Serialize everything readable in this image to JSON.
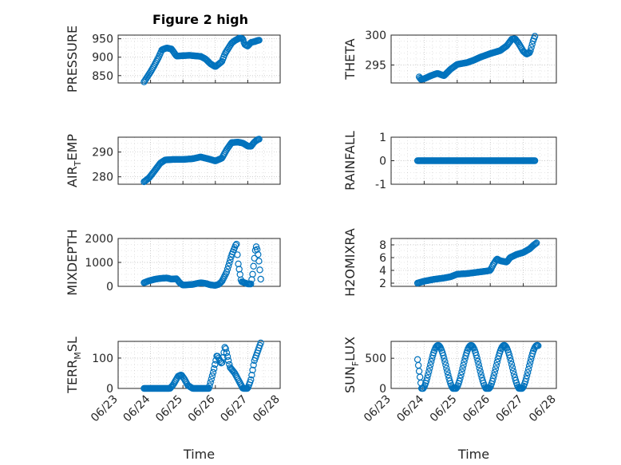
{
  "figure_title": "Figure 2 high",
  "colors": {
    "series": "#0072BD",
    "axes": "#262626",
    "background": "#ffffff"
  },
  "chart_data": [
    {
      "type": "scatter",
      "title": "Figure 2 high",
      "ylabel": "PRESSURE",
      "xlabel": "",
      "ylim": [
        830,
        960
      ],
      "yticks": [
        850,
        900,
        950
      ],
      "ytick_labels": [
        "850",
        "900",
        "950"
      ],
      "xlim": [
        0,
        5
      ],
      "xtick_labels": [],
      "grid": true,
      "anchors": [
        [
          0.8,
          833
        ],
        [
          1.0,
          860
        ],
        [
          1.1,
          875
        ],
        [
          1.25,
          900
        ],
        [
          1.35,
          920
        ],
        [
          1.5,
          925
        ],
        [
          1.65,
          922
        ],
        [
          1.8,
          903
        ],
        [
          2.2,
          905
        ],
        [
          2.55,
          902
        ],
        [
          2.7,
          895
        ],
        [
          2.85,
          882
        ],
        [
          3.0,
          874
        ],
        [
          3.2,
          888
        ],
        [
          3.3,
          910
        ],
        [
          3.5,
          938
        ],
        [
          3.6,
          945
        ],
        [
          3.75,
          952
        ],
        [
          3.85,
          950
        ],
        [
          3.9,
          935
        ],
        [
          4.0,
          930
        ],
        [
          4.1,
          940
        ],
        [
          4.2,
          942
        ],
        [
          4.3,
          945
        ],
        [
          4.35,
          946
        ]
      ]
    },
    {
      "type": "scatter",
      "ylabel": "THETA",
      "xlabel": "",
      "ylim": [
        292,
        300
      ],
      "yticks": [
        295,
        300
      ],
      "ytick_labels": [
        "295",
        "300"
      ],
      "xlim": [
        0,
        5
      ],
      "xtick_labels": [],
      "grid": true,
      "anchors": [
        [
          0.85,
          293.0
        ],
        [
          0.9,
          292.6
        ],
        [
          1.0,
          292.7
        ],
        [
          1.2,
          293.2
        ],
        [
          1.4,
          293.6
        ],
        [
          1.6,
          293.2
        ],
        [
          1.8,
          294.3
        ],
        [
          2.0,
          295.1
        ],
        [
          2.3,
          295.4
        ],
        [
          2.5,
          295.8
        ],
        [
          2.7,
          296.3
        ],
        [
          3.0,
          296.9
        ],
        [
          3.3,
          297.4
        ],
        [
          3.5,
          298.2
        ],
        [
          3.65,
          299.3
        ],
        [
          3.75,
          299.4
        ],
        [
          3.85,
          298.7
        ],
        [
          4.0,
          297.3
        ],
        [
          4.1,
          296.8
        ],
        [
          4.2,
          297.1
        ],
        [
          4.3,
          299.1
        ],
        [
          4.35,
          299.8
        ]
      ]
    },
    {
      "type": "scatter",
      "ylabel_main": "AIR",
      "ylabel_sub": "T",
      "ylabel_rest": "EMP",
      "xlabel": "",
      "ylim": [
        277,
        296
      ],
      "yticks": [
        280,
        290
      ],
      "ytick_labels": [
        "280",
        "290"
      ],
      "xlim": [
        0,
        5
      ],
      "xtick_labels": [],
      "grid": true,
      "anchors": [
        [
          0.8,
          278.0
        ],
        [
          0.95,
          279.5
        ],
        [
          1.1,
          282.0
        ],
        [
          1.3,
          285.5
        ],
        [
          1.45,
          286.8
        ],
        [
          1.7,
          287.0
        ],
        [
          2.0,
          287.0
        ],
        [
          2.3,
          287.3
        ],
        [
          2.55,
          288.0
        ],
        [
          2.7,
          287.5
        ],
        [
          2.85,
          287.0
        ],
        [
          3.0,
          286.4
        ],
        [
          3.2,
          287.5
        ],
        [
          3.35,
          291.0
        ],
        [
          3.5,
          293.8
        ],
        [
          3.7,
          294.0
        ],
        [
          3.85,
          293.6
        ],
        [
          4.0,
          292.4
        ],
        [
          4.1,
          292.3
        ],
        [
          4.2,
          294.0
        ],
        [
          4.3,
          295.0
        ],
        [
          4.35,
          295.2
        ]
      ]
    },
    {
      "type": "scatter",
      "ylabel": "RAINFALL",
      "xlabel": "",
      "ylim": [
        -1,
        1
      ],
      "yticks": [
        -1,
        0,
        1
      ],
      "ytick_labels": [
        "-1",
        "0",
        "1"
      ],
      "xlim": [
        0,
        5
      ],
      "xtick_labels": [],
      "grid": true,
      "anchors": [
        [
          0.8,
          0
        ],
        [
          4.35,
          0
        ]
      ]
    },
    {
      "type": "scatter",
      "ylabel": "MIXDEPTH",
      "xlabel": "",
      "ylim": [
        0,
        2000
      ],
      "yticks": [
        0,
        1000,
        2000
      ],
      "ytick_labels": [
        "0",
        "1000",
        "2000"
      ],
      "xlim": [
        0,
        5
      ],
      "xtick_labels": [],
      "grid": true,
      "anchors": [
        [
          0.8,
          150
        ],
        [
          0.95,
          230
        ],
        [
          1.15,
          300
        ],
        [
          1.3,
          330
        ],
        [
          1.5,
          350
        ],
        [
          1.65,
          300
        ],
        [
          1.8,
          320
        ],
        [
          1.9,
          150
        ],
        [
          2.0,
          50
        ],
        [
          2.3,
          80
        ],
        [
          2.55,
          150
        ],
        [
          2.7,
          120
        ],
        [
          2.85,
          60
        ],
        [
          3.0,
          40
        ],
        [
          3.1,
          80
        ],
        [
          3.2,
          200
        ],
        [
          3.35,
          600
        ],
        [
          3.5,
          1300
        ],
        [
          3.65,
          1800
        ],
        [
          3.7,
          1000
        ],
        [
          3.8,
          200
        ],
        [
          3.9,
          150
        ],
        [
          4.0,
          100
        ],
        [
          4.1,
          100
        ],
        [
          4.15,
          500
        ],
        [
          4.25,
          1700
        ],
        [
          4.3,
          1500
        ],
        [
          4.35,
          1000
        ],
        [
          4.4,
          300
        ]
      ]
    },
    {
      "type": "scatter",
      "ylabel": "H2OMIXRA",
      "xlabel": "",
      "ylim": [
        1.5,
        9
      ],
      "yticks": [
        2,
        4,
        6,
        8
      ],
      "ytick_labels": [
        "2",
        "4",
        "6",
        "8"
      ],
      "xlim": [
        0,
        5
      ],
      "xtick_labels": [],
      "grid": true,
      "anchors": [
        [
          0.8,
          2.0
        ],
        [
          1.0,
          2.3
        ],
        [
          1.3,
          2.6
        ],
        [
          1.6,
          2.8
        ],
        [
          1.8,
          3.0
        ],
        [
          2.0,
          3.4
        ],
        [
          2.3,
          3.5
        ],
        [
          2.6,
          3.7
        ],
        [
          2.9,
          3.9
        ],
        [
          3.0,
          4.0
        ],
        [
          3.1,
          5.0
        ],
        [
          3.2,
          5.8
        ],
        [
          3.3,
          5.5
        ],
        [
          3.5,
          5.3
        ],
        [
          3.6,
          6.0
        ],
        [
          3.8,
          6.5
        ],
        [
          4.0,
          6.8
        ],
        [
          4.2,
          7.4
        ],
        [
          4.3,
          7.9
        ],
        [
          4.4,
          8.3
        ]
      ]
    },
    {
      "type": "scatter",
      "ylabel_main": "TERR",
      "ylabel_sub": "M",
      "ylabel_rest": "SL",
      "xlabel": "Time",
      "ylim": [
        0,
        155
      ],
      "yticks": [
        0,
        100
      ],
      "ytick_labels": [
        "0",
        "100"
      ],
      "xlim": [
        0,
        5
      ],
      "xtick_labels": [
        "06/23",
        "06/24",
        "06/25",
        "06/26",
        "06/27",
        "06/28"
      ],
      "grid": true,
      "anchors": [
        [
          0.8,
          0
        ],
        [
          1.3,
          0
        ],
        [
          1.6,
          0
        ],
        [
          1.7,
          12
        ],
        [
          1.85,
          40
        ],
        [
          1.95,
          45
        ],
        [
          2.05,
          30
        ],
        [
          2.15,
          10
        ],
        [
          2.3,
          0
        ],
        [
          2.8,
          0
        ],
        [
          2.95,
          60
        ],
        [
          3.05,
          110
        ],
        [
          3.2,
          80
        ],
        [
          3.3,
          140
        ],
        [
          3.45,
          70
        ],
        [
          3.6,
          50
        ],
        [
          3.75,
          20
        ],
        [
          3.85,
          0
        ],
        [
          4.0,
          0
        ],
        [
          4.1,
          30
        ],
        [
          4.2,
          90
        ],
        [
          4.3,
          120
        ],
        [
          4.4,
          150
        ]
      ]
    },
    {
      "type": "scatter",
      "ylabel_main": "SUN",
      "ylabel_sub": "F",
      "ylabel_rest": "LUX",
      "xlabel": "Time",
      "ylim": [
        0,
        780
      ],
      "yticks": [
        0,
        500
      ],
      "ytick_labels": [
        "0",
        "500"
      ],
      "xlim": [
        0,
        5
      ],
      "xtick_labels": [
        "06/23",
        "06/24",
        "06/25",
        "06/26",
        "06/27",
        "06/28"
      ],
      "grid": true,
      "diurnal": {
        "x_start": 0.8,
        "x_end": 4.45,
        "peak": 720,
        "start_value": 480
      }
    }
  ]
}
